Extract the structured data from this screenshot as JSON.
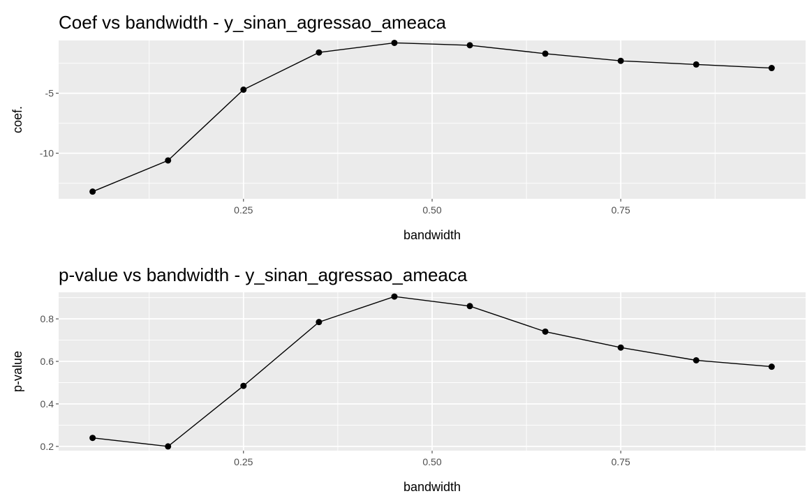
{
  "chart_data": [
    {
      "type": "line",
      "title": "Coef vs bandwidth - y_sinan_agressao_ameaca",
      "xlabel": "bandwidth",
      "ylabel": "coef.",
      "x_ticks": [
        0.25,
        0.5,
        0.75
      ],
      "x_tick_labels": [
        "0.25",
        "0.50",
        "0.75"
      ],
      "y_ticks": [
        -10,
        -5
      ],
      "y_tick_labels": [
        "-10",
        "-5"
      ],
      "xlim": [
        0.005,
        0.995
      ],
      "ylim": [
        -13.8,
        -0.6
      ],
      "grid": true,
      "series": [
        {
          "x": [
            0.05,
            0.15,
            0.25,
            0.35,
            0.45,
            0.55,
            0.65,
            0.75,
            0.85,
            0.95
          ],
          "y": [
            -13.2,
            -10.6,
            -4.7,
            -1.6,
            -0.8,
            -1.0,
            -1.7,
            -2.3,
            -2.6,
            -2.9
          ]
        }
      ]
    },
    {
      "type": "line",
      "title": "p-value vs bandwidth - y_sinan_agressao_ameaca",
      "xlabel": "bandwidth",
      "ylabel": "p-value",
      "x_ticks": [
        0.25,
        0.5,
        0.75
      ],
      "x_tick_labels": [
        "0.25",
        "0.50",
        "0.75"
      ],
      "y_ticks": [
        0.2,
        0.4,
        0.6,
        0.8
      ],
      "y_tick_labels": [
        "0.2",
        "0.4",
        "0.6",
        "0.8"
      ],
      "xlim": [
        0.005,
        0.995
      ],
      "ylim": [
        0.18,
        0.925
      ],
      "grid": true,
      "series": [
        {
          "x": [
            0.05,
            0.15,
            0.25,
            0.35,
            0.45,
            0.55,
            0.65,
            0.75,
            0.85,
            0.95
          ],
          "y": [
            0.24,
            0.2,
            0.485,
            0.785,
            0.905,
            0.86,
            0.74,
            0.665,
            0.605,
            0.575
          ]
        }
      ]
    }
  ]
}
